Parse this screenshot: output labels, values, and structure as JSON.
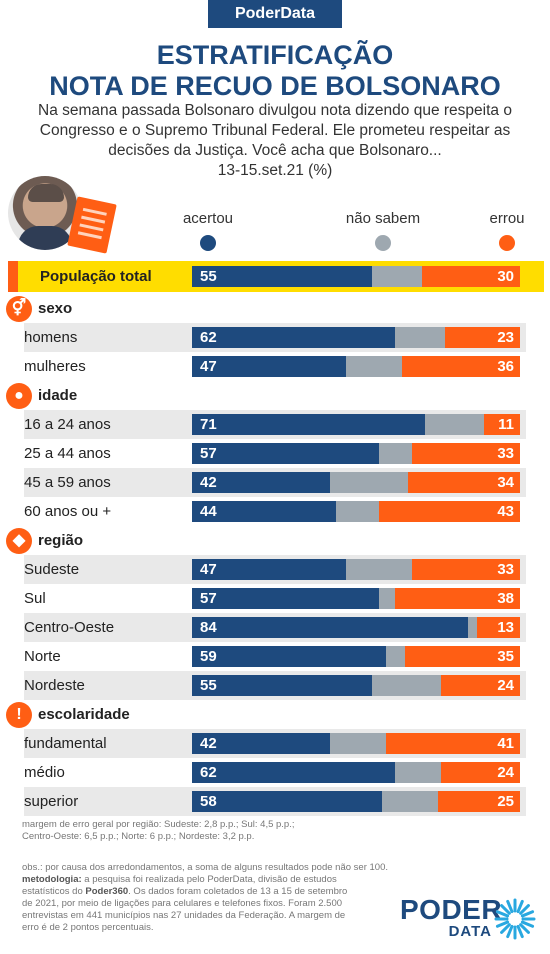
{
  "brand": "PoderData",
  "title_line1": "ESTRATIFICAÇÃO",
  "title_line2": "NOTA DE RECUO DE BOLSONARO",
  "intro_line1": "Na semana passada Bolsonaro divulgou nota dizendo que respeita o",
  "intro_line2": "Congresso e o Supremo Tribunal Federal. Ele prometeu respeitar as",
  "intro_line3": "decisões da Justiça. Você acha que Bolsonaro...",
  "date": "13-15.set.21 (%)",
  "colors": {
    "acertou": "#1e4a7e",
    "nao_sabem": "#9ea8b0",
    "errou": "#ff5e14",
    "highlight": "#ffdd00"
  },
  "legend": {
    "acertou": "acertou",
    "nao_sabem": "não sabem",
    "errou": "errou"
  },
  "chart_data": {
    "type": "bar",
    "stacked": true,
    "orientation": "horizontal",
    "series_names": [
      "acertou",
      "não sabem",
      "errou"
    ],
    "total": {
      "label": "População total",
      "values": [
        55,
        15,
        30
      ]
    },
    "sections": [
      {
        "title": "sexo",
        "icon": "gender-icon",
        "rows": [
          {
            "label": "homens",
            "values": [
              62,
              15,
              23
            ]
          },
          {
            "label": "mulheres",
            "values": [
              47,
              17,
              36
            ]
          }
        ]
      },
      {
        "title": "idade",
        "icon": "person-icon",
        "rows": [
          {
            "label": "16 a 24 anos",
            "values": [
              71,
              18,
              11
            ]
          },
          {
            "label": "25 a 44 anos",
            "values": [
              57,
              10,
              33
            ]
          },
          {
            "label": "45 a 59 anos",
            "values": [
              42,
              24,
              34
            ]
          },
          {
            "label": "60 anos ou +",
            "values": [
              44,
              13,
              43
            ]
          }
        ]
      },
      {
        "title": "região",
        "icon": "brazil-map-icon",
        "rows": [
          {
            "label": "Sudeste",
            "values": [
              47,
              20,
              33
            ]
          },
          {
            "label": "Sul",
            "values": [
              57,
              5,
              38
            ]
          },
          {
            "label": "Centro-Oeste",
            "values": [
              84,
              3,
              13
            ]
          },
          {
            "label": "Norte",
            "values": [
              59,
              6,
              35
            ]
          },
          {
            "label": "Nordeste",
            "values": [
              55,
              21,
              24
            ]
          }
        ]
      },
      {
        "title": "escolaridade",
        "icon": "exclamation-icon",
        "rows": [
          {
            "label": "fundamental",
            "values": [
              42,
              17,
              41
            ]
          },
          {
            "label": "médio",
            "values": [
              62,
              14,
              24
            ]
          },
          {
            "label": "superior",
            "values": [
              58,
              17,
              25
            ]
          }
        ]
      }
    ]
  },
  "margin_note_1": "margem de erro geral por região: Sudeste: 2,8 p.p.; Sul: 4,5 p.p.;",
  "margin_note_2": "Centro-Oeste: 6,5 p.p.; Norte: 6 p.p.; Nordeste: 3,2 p.p.",
  "obs_1": "obs.: por causa dos arredondamentos, a soma de alguns resultados pode não ser 100.",
  "method_label": "metodologia:",
  "method_1": " a pesquisa foi realizada pelo PoderData, divisão de estudos",
  "method_2a": "estatísticos do ",
  "method_2b": "Poder360",
  "method_2c": ". Os dados foram coletados de 13 a 15 de setembro",
  "method_3": "de 2021, por meio de ligações para celulares e telefones fixos. Foram 2.500",
  "method_4": "entrevistas em 441 municípios nas 27 unidades da Federação. A margem de",
  "method_5": "erro é de 2 pontos percentuais.",
  "logo_top": "PODER",
  "logo_bottom": "DATA"
}
